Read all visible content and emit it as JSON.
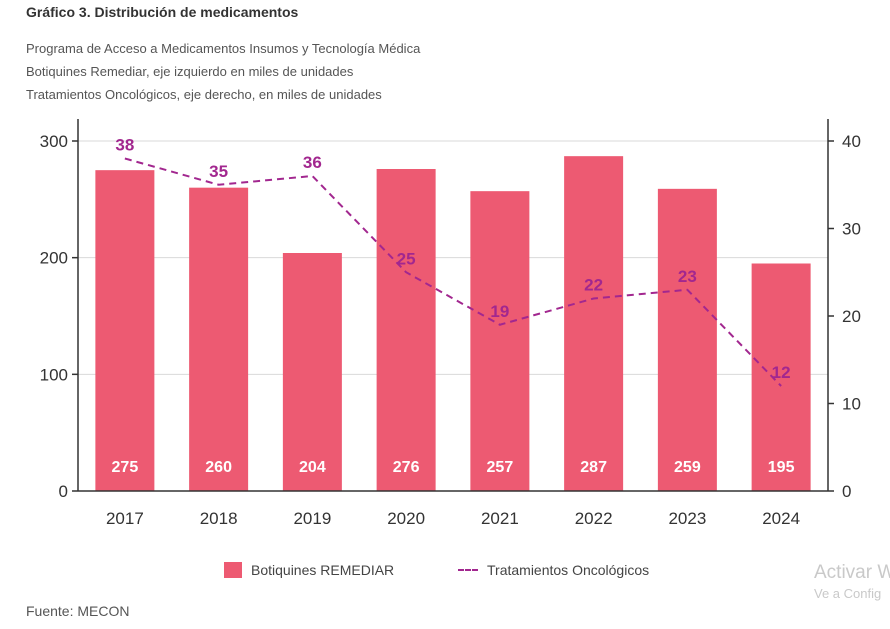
{
  "header": {
    "title": "Gráfico 3. Distribución de medicamentos",
    "subtitle_1": "Programa de Acceso a Medicamentos Insumos y Tecnología Médica",
    "subtitle_2": "Botiquines Remediar, eje izquierdo en miles de unidades",
    "subtitle_3": "Tratamientos Oncológicos, eje derecho, en miles de unidades"
  },
  "legend": {
    "bar_label": "Botiquines REMEDIAR",
    "line_label": "Tratamientos Oncológicos"
  },
  "footer": {
    "source": "Fuente: MECON"
  },
  "watermark": {
    "line1": "Activar W",
    "line2": "Ve a Config"
  },
  "colors": {
    "bar": "#ED5A72",
    "line": "#A2278F",
    "bar_label": "#ffffff",
    "axis": "#333333",
    "grid": "#d9d9d9"
  },
  "chart_data": {
    "type": "bar",
    "categories": [
      "2017",
      "2018",
      "2019",
      "2020",
      "2021",
      "2022",
      "2023",
      "2024"
    ],
    "series": [
      {
        "name": "Botiquines REMEDIAR",
        "type": "bar",
        "axis": "left",
        "values": [
          275,
          260,
          204,
          276,
          257,
          287,
          259,
          195
        ]
      },
      {
        "name": "Tratamientos Oncológicos",
        "type": "line",
        "style": "dashed",
        "axis": "right",
        "values": [
          38,
          35,
          36,
          25,
          19,
          22,
          23,
          12
        ]
      }
    ],
    "y_left": {
      "lim": [
        0,
        300
      ],
      "ticks": [
        "0",
        "100",
        "200",
        "300"
      ]
    },
    "y_right": {
      "lim": [
        0,
        40
      ],
      "ticks": [
        "0",
        "10",
        "20",
        "30",
        "40"
      ]
    },
    "grid": true,
    "legend_position": "bottom"
  }
}
